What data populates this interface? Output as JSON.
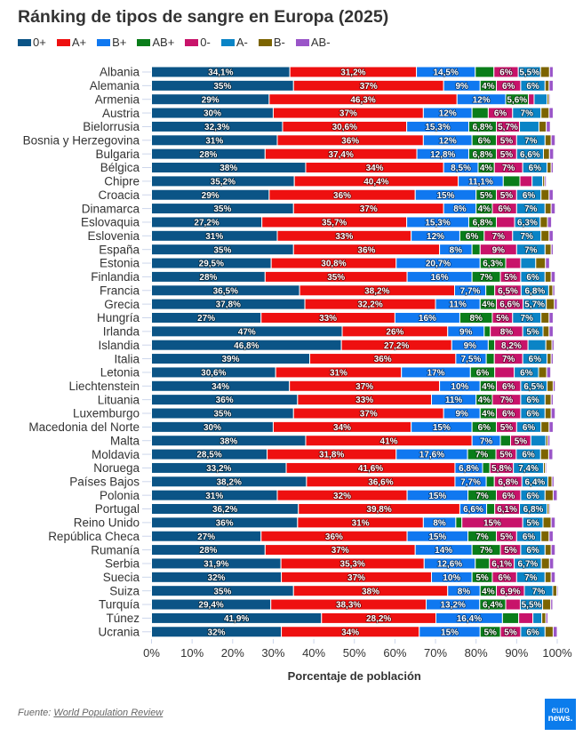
{
  "chart_data": {
    "type": "bar",
    "orientation": "horizontal",
    "stacking": "percent",
    "title": "Ránking de tipos de sangre en Europa (2025)",
    "xlabel": "Porcentaje de población",
    "ylabel": "",
    "xlim": [
      0,
      100
    ],
    "x_tick_values": [
      0,
      10,
      20,
      30,
      40,
      50,
      60,
      70,
      80,
      90,
      100
    ],
    "x_tick_labels": [
      "0%",
      "10%",
      "20%",
      "30%",
      "40%",
      "50%",
      "60%",
      "70%",
      "80%",
      "90%",
      "100%"
    ],
    "grid": false,
    "legend_position": "top-left",
    "categories": [
      "Albania",
      "Alemania",
      "Armenia",
      "Austria",
      "Bielorrusia",
      "Bosnia y Herzegovina",
      "Bulgaria",
      "Bélgica",
      "Chipre",
      "Croacia",
      "Dinamarca",
      "Eslovaquia",
      "Eslovenia",
      "España",
      "Estonia",
      "Finlandia",
      "Francia",
      "Grecia",
      "Hungría",
      "Irlanda",
      "Islandia",
      "Italia",
      "Letonia",
      "Liechtenstein",
      "Lituania",
      "Luxemburgo",
      "Macedonia del Norte",
      "Malta",
      "Moldavia",
      "Noruega",
      "Países Bajos",
      "Polonia",
      "Portugal",
      "Reino Unido",
      "República Checa",
      "Rumanía",
      "Serbia",
      "Suecia",
      "Suiza",
      "Turquía",
      "Túnez",
      "Ucrania"
    ],
    "series": [
      {
        "name": "0+",
        "color": "#0b5486",
        "values": [
          34.1,
          35,
          29,
          30,
          32.3,
          31,
          28,
          38,
          35.2,
          29,
          35,
          27.2,
          31,
          35,
          29.5,
          28,
          36.5,
          37.8,
          27,
          47,
          46.8,
          39,
          30.6,
          34,
          36,
          35,
          30,
          38,
          28.5,
          33.2,
          38.2,
          31,
          36.2,
          36,
          27,
          28,
          31.9,
          32,
          35,
          29.4,
          41.9,
          32
        ],
        "labels": [
          "34,1%",
          "35%",
          "29%",
          "30%",
          "32,3%",
          "31%",
          "28%",
          "38%",
          "35,2%",
          "29%",
          "35%",
          "27,2%",
          "31%",
          "35%",
          "29,5%",
          "28%",
          "36,5%",
          "37,8%",
          "27%",
          "47%",
          "46,8%",
          "39%",
          "30,6%",
          "34%",
          "36%",
          "35%",
          "30%",
          "38%",
          "28,5%",
          "33,2%",
          "38,2%",
          "31%",
          "36,2%",
          "36%",
          "27%",
          "28%",
          "31,9%",
          "32%",
          "35%",
          "29,4%",
          "41,9%",
          "32%"
        ]
      },
      {
        "name": "A+",
        "color": "#ee1010",
        "values": [
          31.2,
          37,
          46.3,
          37,
          30.6,
          36,
          37.4,
          34,
          40.4,
          36,
          37,
          35.7,
          33,
          36,
          30.8,
          35,
          38.2,
          32.2,
          33,
          26,
          27.2,
          36,
          31,
          37,
          33,
          37,
          34,
          41,
          31.8,
          41.6,
          36.6,
          32,
          39.8,
          31,
          36,
          37,
          35.3,
          37,
          38,
          38.3,
          28.2,
          34
        ],
        "labels": [
          "31,2%",
          "37%",
          "46,3%",
          "37%",
          "30,6%",
          "36%",
          "37,4%",
          "34%",
          "40,4%",
          "36%",
          "37%",
          "35,7%",
          "33%",
          "36%",
          "30,8%",
          "35%",
          "38,2%",
          "32,2%",
          "33%",
          "26%",
          "27,2%",
          "36%",
          "31%",
          "37%",
          "33%",
          "37%",
          "34%",
          "41%",
          "31,8%",
          "41,6%",
          "36,6%",
          "32%",
          "39,8%",
          "31%",
          "36%",
          "37%",
          "35,3%",
          "37%",
          "38%",
          "38,3%",
          "28,2%",
          "34%"
        ]
      },
      {
        "name": "B+",
        "color": "#1078f0",
        "values": [
          14.5,
          9,
          12,
          12,
          15.3,
          12,
          12.8,
          8.5,
          11.1,
          15,
          8,
          15.3,
          12,
          8,
          20.7,
          16,
          7.7,
          11,
          16,
          9,
          9,
          7.5,
          17,
          10,
          11,
          9,
          15,
          7,
          17.6,
          6.8,
          7.7,
          15,
          6.6,
          8,
          15,
          14,
          12.6,
          10,
          8,
          13.2,
          16.4,
          15
        ],
        "labels": [
          "14,5%",
          "9%",
          "12%",
          "12%",
          "15,3%",
          "12%",
          "12,8%",
          "8,5%",
          "11,1%",
          "15%",
          "8%",
          "15,3%",
          "12%",
          "8%",
          "20,7%",
          "16%",
          "7,7%",
          "11%",
          "16%",
          "9%",
          "9%",
          "7,5%",
          "17%",
          "10%",
          "11%",
          "9%",
          "15%",
          "7%",
          "17,6%",
          "6,8%",
          "7,7%",
          "15%",
          "6,6%",
          "8%",
          "15%",
          "14%",
          "12,6%",
          "10%",
          "8%",
          "13,2%",
          "16,4%",
          "15%"
        ]
      },
      {
        "name": "AB+",
        "color": "#0a7d1a",
        "values": [
          4.6,
          4,
          5.6,
          4,
          6.8,
          6,
          6.8,
          4,
          4.1,
          5,
          4,
          6.8,
          6,
          2,
          6.3,
          7,
          2.2,
          4,
          8,
          1.5,
          1.6,
          2,
          6,
          4,
          4,
          4,
          6,
          2.5,
          7,
          1.8,
          2,
          7,
          2,
          1.5,
          7,
          7,
          3.5,
          5,
          4,
          6.4,
          4,
          5
        ],
        "labels": [
          null,
          "4%",
          "5,6%",
          null,
          "6,8%",
          "6%",
          "6,8%",
          "4%",
          null,
          "5%",
          "4%",
          "6,8%",
          "6%",
          null,
          "6,3%",
          "7%",
          null,
          "4%",
          "8%",
          null,
          null,
          null,
          "6%",
          "4%",
          "4%",
          "4%",
          "6%",
          null,
          "7%",
          null,
          null,
          "7%",
          null,
          null,
          "7%",
          "7%",
          null,
          "5%",
          "4%",
          "6,4%",
          null,
          "5%"
        ]
      },
      {
        "name": "0-",
        "color": "#c8136a",
        "values": [
          6,
          6,
          1.4,
          6,
          5.7,
          5,
          5,
          7,
          3,
          5,
          6,
          4.5,
          7,
          9,
          3.7,
          5,
          6.5,
          6.6,
          5,
          8,
          8.2,
          7,
          4.8,
          6,
          7,
          6,
          5,
          5,
          5,
          5.8,
          6.8,
          6,
          6.1,
          15,
          5,
          5,
          6.1,
          6,
          6.9,
          3.6,
          3.5,
          5
        ],
        "labels": [
          "6%",
          "6%",
          null,
          "6%",
          "5,7%",
          "5%",
          "5%",
          "7%",
          null,
          "5%",
          "6%",
          null,
          "7%",
          "9%",
          null,
          "5%",
          "6,5%",
          "6,6%",
          "5%",
          "8%",
          "8,2%",
          "7%",
          null,
          "6%",
          "7%",
          "6%",
          "5%",
          "5%",
          "5%",
          "5,8%",
          "6,8%",
          "6%",
          "6,1%",
          "15%",
          "5%",
          "5%",
          "6,1%",
          "6%",
          "6,9%",
          null,
          null,
          "5%"
        ]
      },
      {
        "name": "A-",
        "color": "#0a84c6",
        "values": [
          5.5,
          6,
          3.2,
          7,
          4.8,
          7,
          6.6,
          6,
          2.6,
          6,
          7,
          6.3,
          7,
          7,
          3.7,
          6,
          6.8,
          5.7,
          7,
          5,
          4.4,
          6,
          6,
          6.5,
          6,
          6,
          6,
          3.7,
          6,
          7.4,
          6.4,
          6,
          6.8,
          5,
          6,
          6,
          6.7,
          7,
          7,
          5.5,
          2.2,
          6
        ],
        "labels": [
          "5,5%",
          "6%",
          null,
          "7%",
          null,
          "7%",
          "6,6%",
          "6%",
          null,
          "6%",
          "7%",
          "6,3%",
          "7%",
          "7%",
          null,
          "6%",
          "6,8%",
          "5,7%",
          "7%",
          "5%",
          null,
          "6%",
          "6%",
          "6,5%",
          "6%",
          "6%",
          "6%",
          null,
          "6%",
          "7,4%",
          "6,4%",
          "6%",
          "6,8%",
          "5%",
          "6%",
          "6%",
          "6,7%",
          "7%",
          "7%",
          "5,5%",
          null,
          "6%"
        ]
      },
      {
        "name": "B-",
        "color": "#7c6400",
        "values": [
          2.2,
          1,
          0.5,
          2,
          1.8,
          1.5,
          1.5,
          1,
          0.5,
          2,
          1.5,
          1.8,
          2,
          1.5,
          2.4,
          1.5,
          1,
          2,
          2,
          1.5,
          1.5,
          1,
          2,
          1.5,
          1.5,
          1.5,
          2,
          0.5,
          2,
          0.5,
          1,
          2,
          0.5,
          2,
          2,
          1.5,
          2,
          1.5,
          1,
          2,
          1,
          2
        ],
        "labels": []
      },
      {
        "name": "AB-",
        "color": "#9a55c8",
        "values": [
          0.9,
          1,
          0.3,
          1,
          1,
          1,
          1,
          0.5,
          0.4,
          1,
          1,
          1,
          1,
          0.5,
          1,
          1,
          0.5,
          0.7,
          1,
          1,
          0.5,
          0.5,
          1,
          0.5,
          0.5,
          1,
          1,
          0.5,
          1,
          0.3,
          0.5,
          1,
          0.3,
          1,
          1,
          1,
          1,
          1,
          0.3,
          0.5,
          0.5,
          1
        ],
        "labels": []
      }
    ]
  },
  "footer": {
    "source_prefix": "Fuente:",
    "source_link": "World Population Review",
    "logo_line1": "euro",
    "logo_line2": "news."
  }
}
